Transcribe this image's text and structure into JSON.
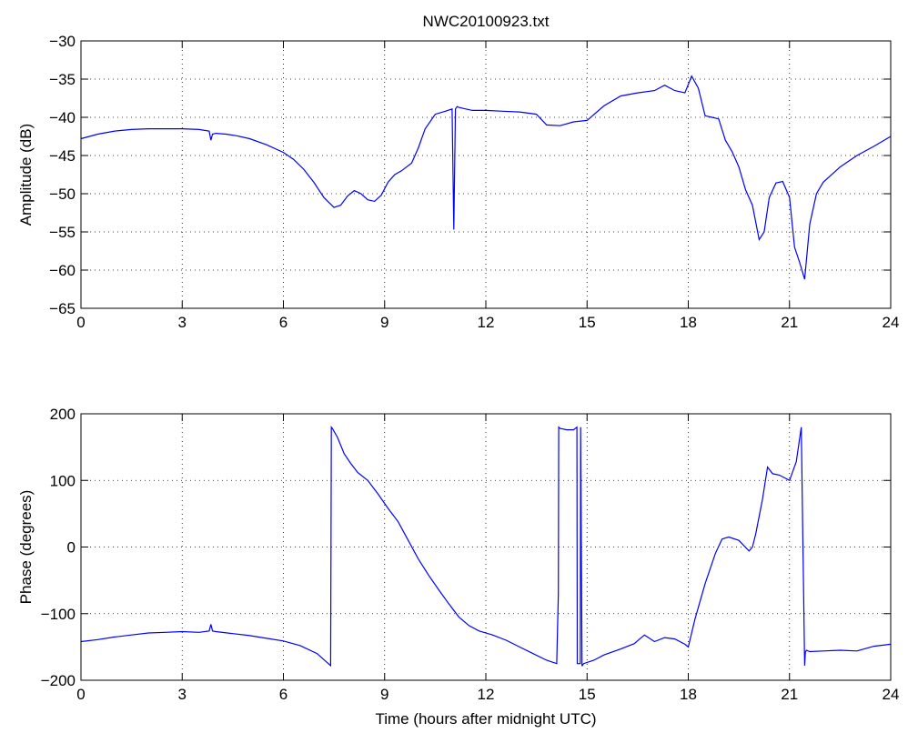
{
  "figure": {
    "title": "NWC20100923.txt"
  },
  "chart_data": [
    {
      "type": "line",
      "title": "NWC20100923.txt",
      "xlabel": "",
      "ylabel": "Amplitude (dB)",
      "xlim": [
        0,
        24
      ],
      "ylim": [
        -65,
        -30
      ],
      "xticks": [
        0,
        3,
        6,
        9,
        12,
        15,
        18,
        21,
        24
      ],
      "yticks": [
        -65,
        -60,
        -55,
        -50,
        -45,
        -40,
        -35,
        -30
      ],
      "grid": true,
      "series_color": "#0000ff",
      "series": [
        {
          "x": [
            0,
            0.5,
            1,
            1.5,
            2,
            2.5,
            3,
            3.5,
            3.8,
            3.85,
            3.9,
            4,
            4.3,
            4.6,
            5,
            5.5,
            6,
            6.3,
            6.6,
            6.9,
            7.2,
            7.5,
            7.7,
            7.9,
            8.1,
            8.3,
            8.5,
            8.7,
            8.9,
            9.1,
            9.3,
            9.5,
            9.8,
            10,
            10.2,
            10.5,
            10.8,
            11.0,
            11.05,
            11.1,
            11.15,
            11.2,
            11.4,
            11.6,
            12,
            12.5,
            13,
            13.5,
            13.8,
            14.2,
            14.6,
            15,
            15.5,
            16,
            16.5,
            17,
            17.3,
            17.6,
            17.9,
            18.1,
            18.3,
            18.5,
            18.7,
            18.9,
            19.1,
            19.3,
            19.5,
            19.7,
            19.9,
            20.1,
            20.25,
            20.4,
            20.6,
            20.8,
            21.0,
            21.15,
            21.3,
            21.45,
            21.6,
            21.8,
            22,
            22.5,
            23,
            23.5,
            24
          ],
          "y": [
            -42.8,
            -42.2,
            -41.8,
            -41.6,
            -41.5,
            -41.5,
            -41.5,
            -41.6,
            -41.8,
            -43.0,
            -42.2,
            -42.1,
            -42.2,
            -42.4,
            -42.8,
            -43.6,
            -44.6,
            -45.5,
            -46.8,
            -48.5,
            -50.5,
            -51.8,
            -51.5,
            -50.3,
            -49.6,
            -50.0,
            -50.8,
            -51.0,
            -50.2,
            -48.5,
            -47.5,
            -47.0,
            -46.0,
            -44.0,
            -41.5,
            -39.6,
            -39.2,
            -38.9,
            -54.7,
            -38.9,
            -38.6,
            -38.7,
            -38.9,
            -39.1,
            -39.1,
            -39.2,
            -39.3,
            -39.6,
            -41.0,
            -41.1,
            -40.6,
            -40.4,
            -38.5,
            -37.2,
            -36.8,
            -36.5,
            -35.8,
            -36.5,
            -36.8,
            -34.6,
            -36.2,
            -39.8,
            -40.0,
            -40.2,
            -43.0,
            -44.5,
            -46.5,
            -49.5,
            -51.5,
            -56.0,
            -55.0,
            -50.5,
            -48.6,
            -48.4,
            -50.5,
            -57.0,
            -59.0,
            -61.2,
            -54.0,
            -50.0,
            -48.5,
            -46.5,
            -45.0,
            -43.8,
            -42.5
          ]
        }
      ]
    },
    {
      "type": "line",
      "title": "",
      "xlabel": "Time (hours after midnight UTC)",
      "ylabel": "Phase (degrees)",
      "xlim": [
        0,
        24
      ],
      "ylim": [
        -200,
        200
      ],
      "xticks": [
        0,
        3,
        6,
        9,
        12,
        15,
        18,
        21,
        24
      ],
      "yticks": [
        -200,
        -100,
        0,
        100,
        200
      ],
      "grid": true,
      "series_color": "#0000ff",
      "series": [
        {
          "x": [
            0,
            0.5,
            1,
            1.5,
            2,
            2.5,
            3,
            3.5,
            3.8,
            3.85,
            3.9,
            4,
            4.5,
            5,
            5.5,
            6,
            6.5,
            7,
            7.4,
            7.42,
            7.45,
            7.6,
            7.8,
            8.0,
            8.2,
            8.5,
            8.8,
            9.1,
            9.4,
            9.7,
            10.0,
            10.3,
            10.6,
            10.9,
            11.2,
            11.5,
            11.8,
            12.2,
            12.6,
            13,
            13.4,
            13.8,
            14.1,
            14.15,
            14.16,
            14.2,
            14.4,
            14.6,
            14.7,
            14.71,
            14.75,
            14.8,
            14.81,
            14.85,
            14.86,
            14.9,
            15.2,
            15.5,
            16,
            16.4,
            16.7,
            17,
            17.3,
            17.6,
            17.9,
            18.0,
            18.2,
            18.5,
            18.8,
            19.0,
            19.2,
            19.5,
            19.8,
            19.9,
            20.0,
            20.2,
            20.35,
            20.5,
            20.7,
            21.0,
            21.2,
            21.35,
            21.45,
            21.47,
            21.5,
            21.6,
            22,
            22.5,
            23,
            23.5,
            24
          ],
          "y": [
            -142,
            -139,
            -135,
            -132,
            -129,
            -128,
            -127,
            -128,
            -126,
            -116,
            -126,
            -127,
            -130,
            -133,
            -137,
            -141,
            -148,
            -160,
            -178,
            180,
            178,
            165,
            140,
            125,
            112,
            100,
            80,
            58,
            38,
            10,
            -18,
            -42,
            -64,
            -85,
            -105,
            -118,
            -126,
            -132,
            -140,
            -150,
            -160,
            -170,
            -175,
            -70,
            180,
            178,
            176,
            176,
            180,
            -175,
            -175,
            -175,
            180,
            -178,
            -178,
            -175,
            -170,
            -162,
            -153,
            -145,
            -132,
            -142,
            -136,
            -138,
            -146,
            -150,
            -108,
            -55,
            -10,
            12,
            15,
            10,
            -6,
            0,
            20,
            72,
            120,
            110,
            108,
            100,
            128,
            180,
            -178,
            -158,
            -155,
            -157,
            -156,
            -155,
            -156,
            -149,
            -146
          ]
        }
      ]
    }
  ]
}
